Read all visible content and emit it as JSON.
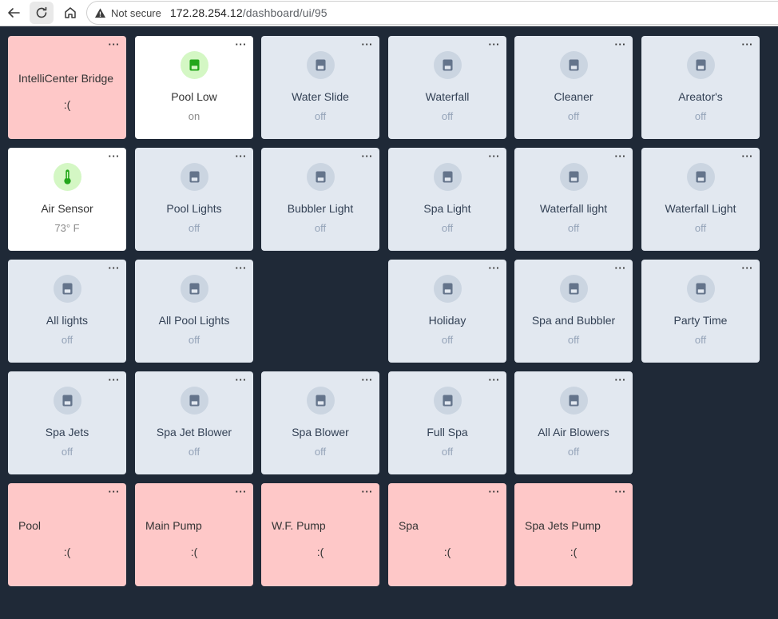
{
  "browser": {
    "not_secure": "Not secure",
    "url_host": "172.28.254.12",
    "url_path": "/dashboard/ui/95"
  },
  "colors": {
    "background": "#1f2937",
    "tile_off": "#e2e8f0",
    "tile_on": "#ffffff",
    "tile_error": "#fec8c8",
    "icon_on": "#22a61a"
  },
  "tiles": [
    {
      "label": "IntelliCenter Bridge",
      "status": ":(",
      "kind": "error"
    },
    {
      "label": "Pool Low",
      "status": "on",
      "kind": "on",
      "icon": "switch-icon"
    },
    {
      "label": "Water Slide",
      "status": "off",
      "kind": "off",
      "icon": "switch-icon"
    },
    {
      "label": "Waterfall",
      "status": "off",
      "kind": "off",
      "icon": "switch-icon"
    },
    {
      "label": "Cleaner",
      "status": "off",
      "kind": "off",
      "icon": "switch-icon"
    },
    {
      "label": "Areator's",
      "status": "off",
      "kind": "off",
      "icon": "switch-icon"
    },
    {
      "label": "Air Sensor",
      "status": "73° F",
      "kind": "on",
      "icon": "thermometer-icon"
    },
    {
      "label": "Pool Lights",
      "status": "off",
      "kind": "off",
      "icon": "switch-icon"
    },
    {
      "label": "Bubbler Light",
      "status": "off",
      "kind": "off",
      "icon": "switch-icon"
    },
    {
      "label": "Spa Light",
      "status": "off",
      "kind": "off",
      "icon": "switch-icon"
    },
    {
      "label": "Waterfall light",
      "status": "off",
      "kind": "off",
      "icon": "switch-icon"
    },
    {
      "label": "Waterfall Light",
      "status": "off",
      "kind": "off",
      "icon": "switch-icon"
    },
    {
      "label": "All lights",
      "status": "off",
      "kind": "off",
      "icon": "switch-icon"
    },
    {
      "label": "All Pool Lights",
      "status": "off",
      "kind": "off",
      "icon": "switch-icon"
    },
    {
      "label": "Holiday",
      "status": "off",
      "kind": "off",
      "icon": "switch-icon"
    },
    {
      "label": "Spa and Bubbler",
      "status": "off",
      "kind": "off",
      "icon": "switch-icon"
    },
    {
      "label": "Party Time",
      "status": "off",
      "kind": "off",
      "icon": "switch-icon"
    },
    {
      "label": "Spa Jets",
      "status": "off",
      "kind": "off",
      "icon": "switch-icon"
    },
    {
      "label": "Spa Jet Blower",
      "status": "off",
      "kind": "off",
      "icon": "switch-icon"
    },
    {
      "label": "Spa Blower",
      "status": "off",
      "kind": "off",
      "icon": "switch-icon"
    },
    {
      "label": "Full Spa",
      "status": "off",
      "kind": "off",
      "icon": "switch-icon"
    },
    {
      "label": "All Air Blowers",
      "status": "off",
      "kind": "off",
      "icon": "switch-icon"
    },
    {
      "label": "Pool",
      "status": ":(",
      "kind": "error"
    },
    {
      "label": "Main Pump",
      "status": ":(",
      "kind": "error"
    },
    {
      "label": "W.F. Pump",
      "status": ":(",
      "kind": "error"
    },
    {
      "label": "Spa",
      "status": ":(",
      "kind": "error"
    },
    {
      "label": "Spa Jets Pump",
      "status": ":(",
      "kind": "error"
    }
  ]
}
